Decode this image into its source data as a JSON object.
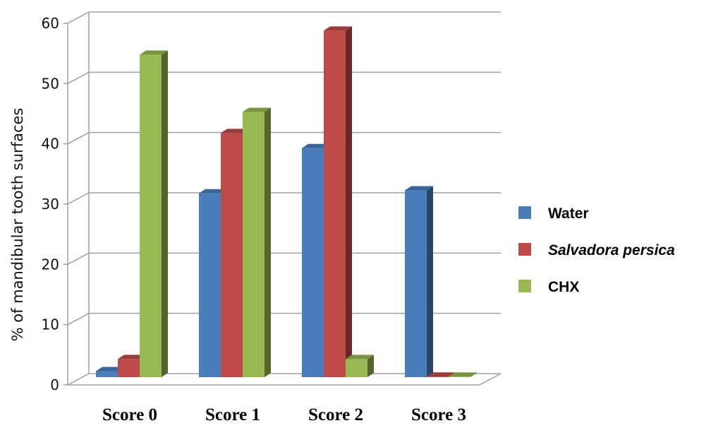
{
  "chart_data": {
    "type": "bar",
    "ylabel": "% of mandibular tooth surfaces",
    "xlabel": "",
    "ylim": [
      0,
      60
    ],
    "yticks": [
      0,
      10,
      20,
      30,
      40,
      50,
      60
    ],
    "grid": true,
    "legend_position": "right",
    "categories": [
      "Score 0",
      "Score 1",
      "Score 2",
      "Score 3"
    ],
    "series": [
      {
        "name": "Water",
        "values": [
          1,
          30.5,
          38,
          31
        ],
        "color": "#4a7ebb",
        "italic": false
      },
      {
        "name": "Salvadora persica",
        "values": [
          3,
          40.5,
          57.5,
          0
        ],
        "color": "#be4b48",
        "italic": true
      },
      {
        "name": "CHX",
        "values": [
          53.5,
          44,
          3,
          0
        ],
        "color": "#98b954",
        "italic": false
      }
    ]
  }
}
